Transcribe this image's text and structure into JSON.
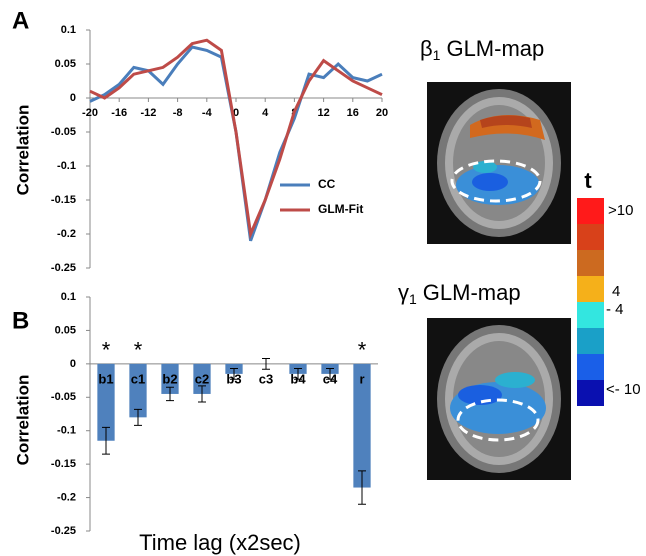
{
  "chart_data": [
    {
      "type": "line",
      "panel": "A",
      "y_label": "Correlation",
      "x": [
        -20,
        -18,
        -16,
        -14,
        -12,
        -10,
        -8,
        -6,
        -4,
        -2,
        0,
        2,
        4,
        6,
        8,
        10,
        12,
        14,
        16,
        18,
        20
      ],
      "xlim": [
        -20,
        20
      ],
      "xticks": [
        -20,
        -16,
        -12,
        -8,
        -4,
        0,
        4,
        8,
        12,
        16,
        20
      ],
      "ylim": [
        -0.25,
        0.1
      ],
      "yticks": [
        0.1,
        0.05,
        0,
        -0.05,
        -0.1,
        -0.15,
        -0.2,
        -0.25
      ],
      "series": [
        {
          "name": "CC",
          "color": "#4a7ebb",
          "values": [
            -0.005,
            0.005,
            0.02,
            0.045,
            0.04,
            0.02,
            0.05,
            0.075,
            0.07,
            0.06,
            -0.05,
            -0.21,
            -0.15,
            -0.08,
            -0.03,
            0.035,
            0.03,
            0.05,
            0.03,
            0.025,
            0.035
          ]
        },
        {
          "name": "GLM-Fit",
          "color": "#be4b48",
          "values": [
            0.01,
            0.0,
            0.015,
            0.035,
            0.04,
            0.045,
            0.06,
            0.08,
            0.085,
            0.07,
            -0.05,
            -0.2,
            -0.15,
            -0.09,
            -0.02,
            0.025,
            0.055,
            0.04,
            0.025,
            0.015,
            0.005
          ]
        }
      ]
    },
    {
      "type": "bar",
      "panel": "B",
      "y_label": "Correlation",
      "x_label": "Time lag (x2sec)",
      "categories": [
        "b1",
        "c1",
        "b2",
        "c2",
        "b3",
        "c3",
        "b4",
        "c4",
        "r"
      ],
      "values": [
        -0.115,
        -0.08,
        -0.045,
        -0.045,
        -0.015,
        0.0,
        -0.015,
        -0.015,
        -0.185
      ],
      "errors": [
        0.02,
        0.012,
        0.01,
        0.012,
        0.008,
        0.008,
        0.008,
        0.008,
        0.025
      ],
      "markers": [
        "*",
        "*",
        null,
        null,
        null,
        null,
        null,
        null,
        "*"
      ],
      "color": "#4f81bd",
      "ylim": [
        -0.25,
        0.1
      ],
      "yticks": [
        0.1,
        0.05,
        0,
        -0.05,
        -0.1,
        -0.15,
        -0.2,
        -0.25
      ]
    }
  ],
  "maps": [
    {
      "symbol": "β",
      "subscript": "1",
      "text": "GLM-map"
    },
    {
      "symbol": "γ",
      "subscript": "1",
      "text": "GLM-map"
    }
  ],
  "colorbar": {
    "label": "t",
    "labels": [
      ">10",
      "4",
      "- 4",
      "<- 10"
    ]
  }
}
